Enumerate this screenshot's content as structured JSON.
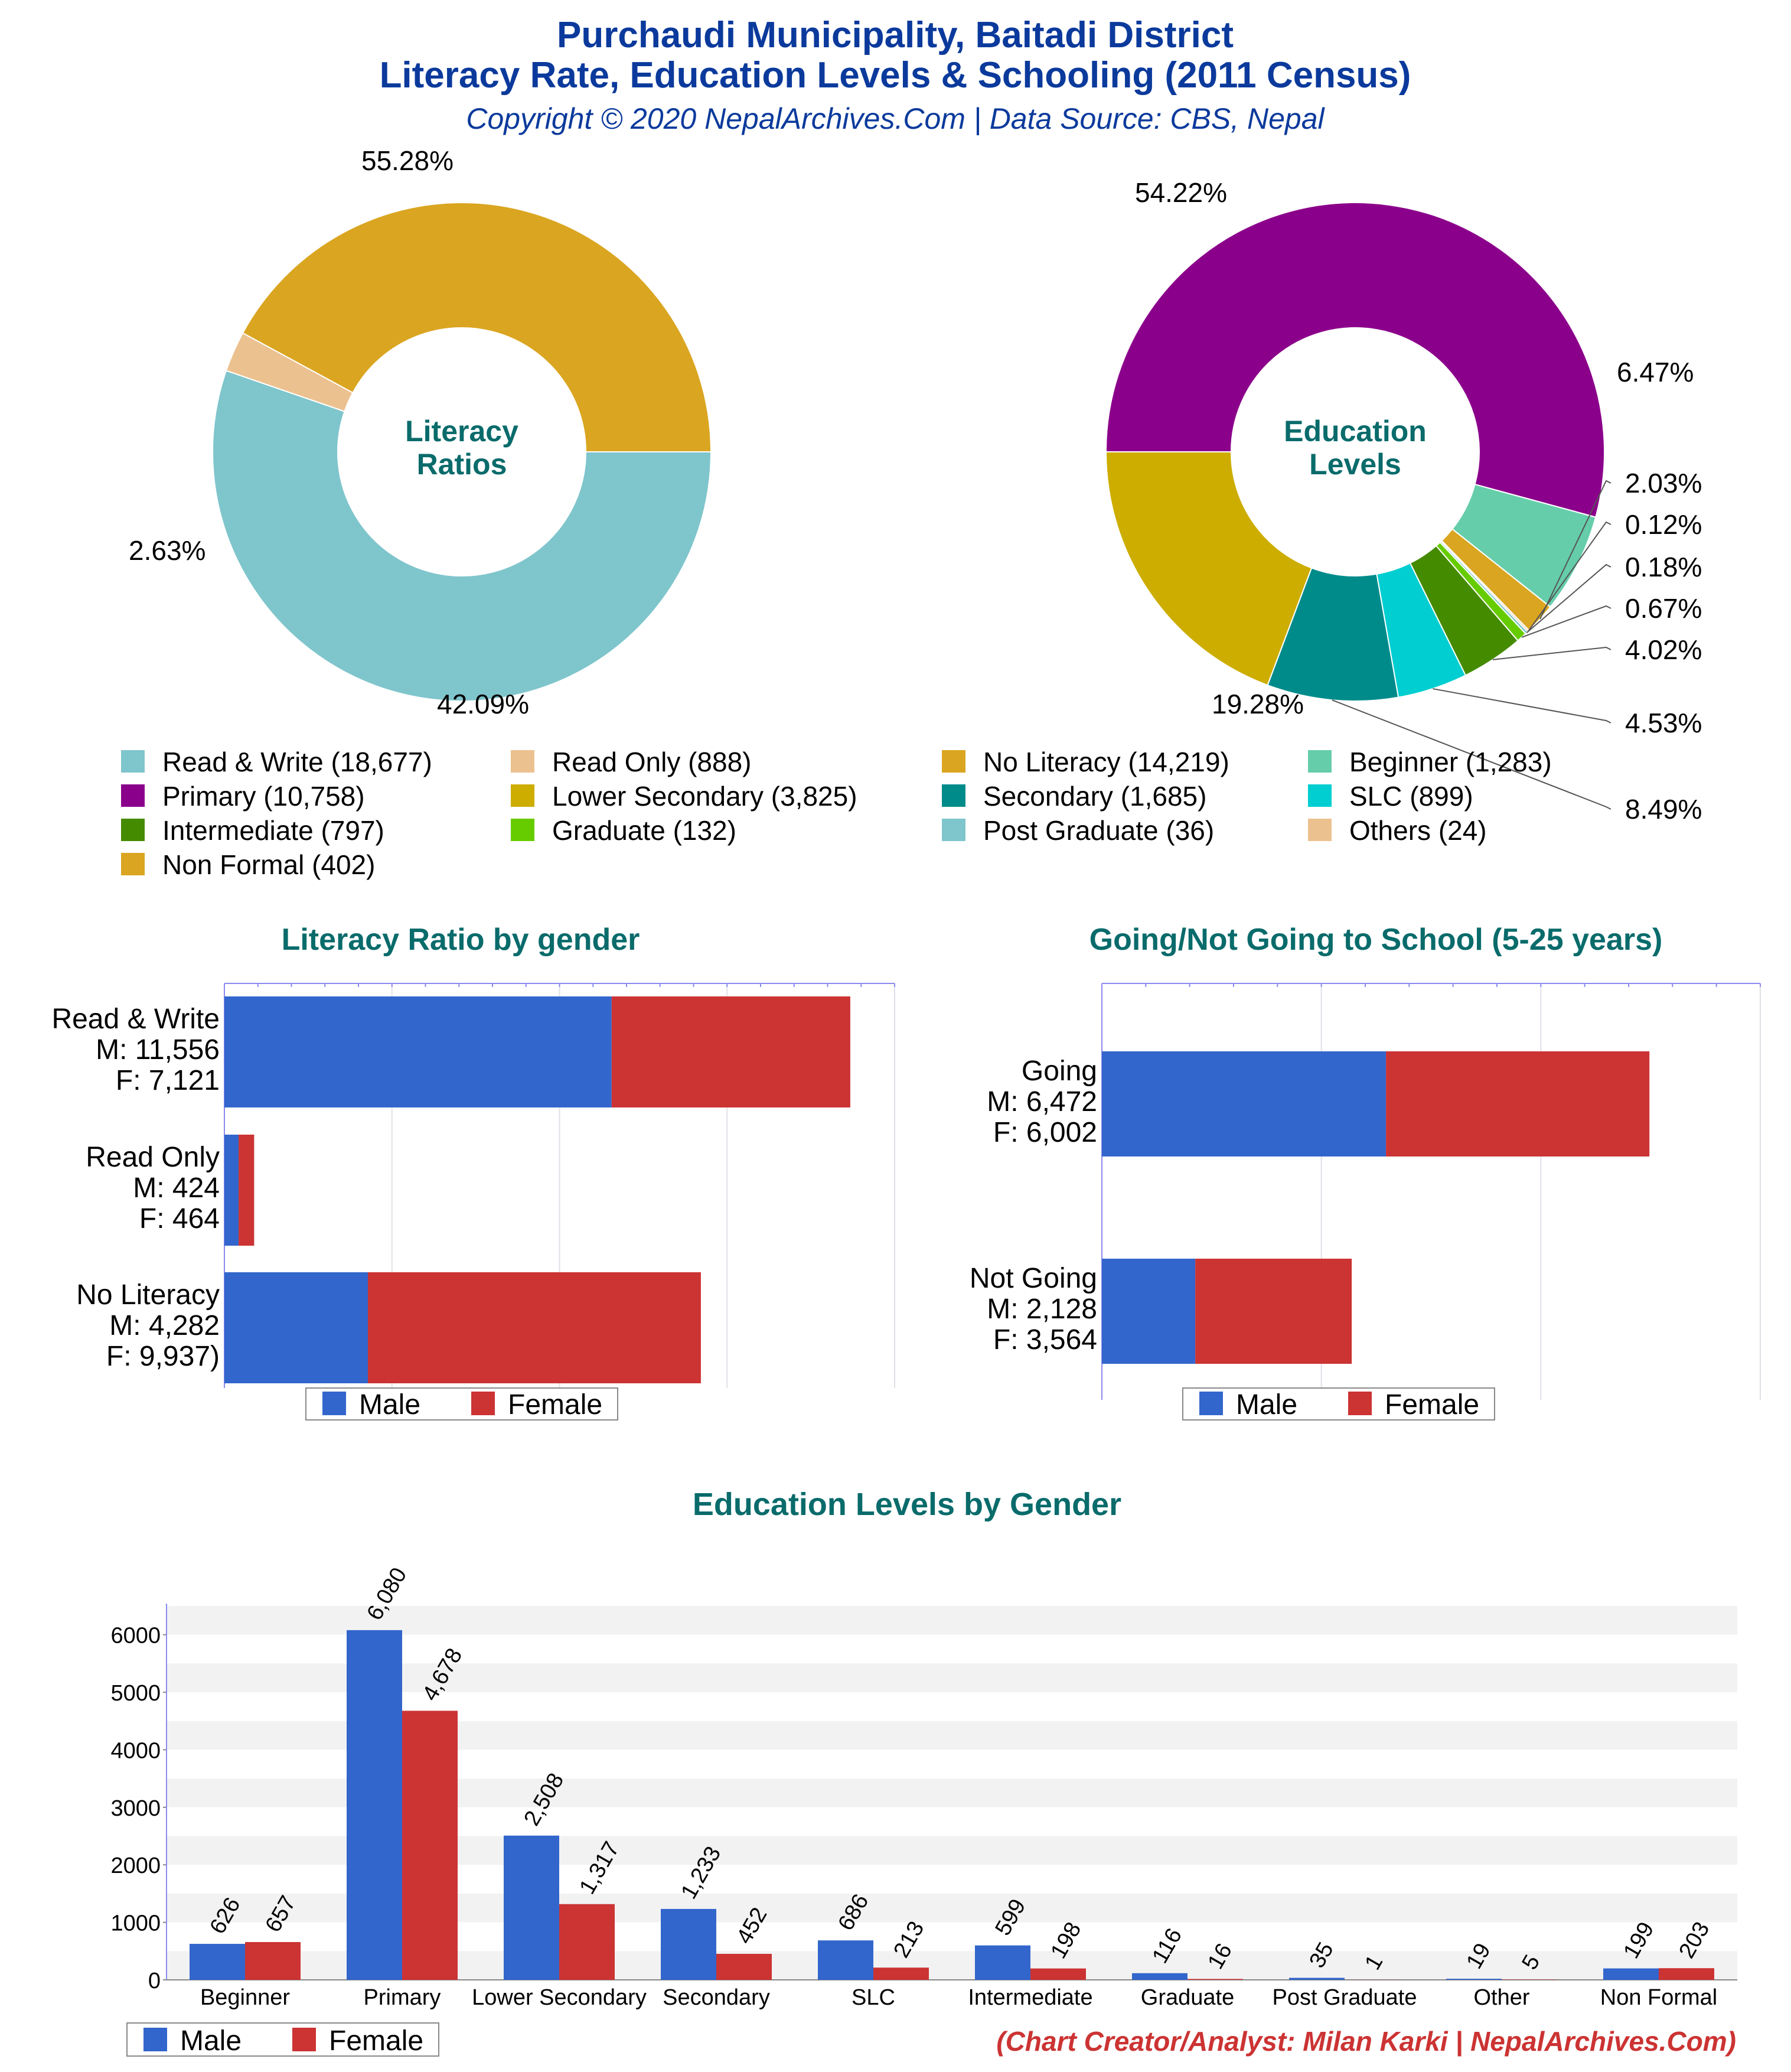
{
  "header": {
    "title_line1": "Purchaudi Municipality, Baitadi District",
    "title_line2": "Literacy Rate, Education Levels & Schooling (2011 Census)",
    "subtitle": "Copyright © 2020 NepalArchives.Com | Data Source: CBS, Nepal"
  },
  "colors": {
    "title": "#0b3a9c",
    "section_title": "#0a6b6b",
    "male": "#3366cc",
    "female": "#cc3333",
    "credit": "#cc3333"
  },
  "credit": "(Chart Creator/Analyst: Milan Karki | NepalArchives.Com)",
  "chart_data": [
    {
      "id": "literacy-donut",
      "type": "pie",
      "center_label": [
        "Literacy",
        "Ratios"
      ],
      "slices": [
        {
          "name": "Read & Write",
          "value": 18677,
          "pct": "55.28%",
          "color": "#7fc5cc"
        },
        {
          "name": "Read Only",
          "value": 888,
          "pct": "2.63%",
          "color": "#ecc190"
        },
        {
          "name": "No Literacy",
          "value": 14219,
          "pct": "42.09%",
          "color": "#daa520"
        }
      ]
    },
    {
      "id": "education-donut",
      "type": "pie",
      "center_label": [
        "Education",
        "Levels"
      ],
      "slices": [
        {
          "name": "Primary",
          "value": 10758,
          "pct": "54.22%",
          "color": "#8b008b"
        },
        {
          "name": "Beginner",
          "value": 1283,
          "pct": "6.47%",
          "color": "#66cdaa"
        },
        {
          "name": "Non Formal",
          "value": 402,
          "pct": "2.03%",
          "color": "#daa520"
        },
        {
          "name": "Others",
          "value": 24,
          "pct": "0.12%",
          "color": "#ecc190"
        },
        {
          "name": "Post Graduate",
          "value": 36,
          "pct": "0.18%",
          "color": "#7fc5cc"
        },
        {
          "name": "Graduate",
          "value": 132,
          "pct": "0.67%",
          "color": "#66cc00"
        },
        {
          "name": "Intermediate",
          "value": 797,
          "pct": "4.02%",
          "color": "#458b00"
        },
        {
          "name": "SLC",
          "value": 899,
          "pct": "4.53%",
          "color": "#00ced1"
        },
        {
          "name": "Secondary",
          "value": 1685,
          "pct": "8.49%",
          "color": "#008b8b"
        },
        {
          "name": "Lower Secondary",
          "value": 3825,
          "pct": "19.28%",
          "color": "#cdad00"
        }
      ]
    },
    {
      "id": "literacy-gender",
      "type": "bar",
      "orientation": "horizontal-stacked",
      "title": "Literacy Ratio by gender",
      "categories": [
        {
          "name": "Read & Write",
          "labels": [
            "Read & Write",
            "M: 11,556",
            "F: 7,121"
          ]
        },
        {
          "name": "Read Only",
          "labels": [
            "Read Only",
            "M: 424",
            "F: 464"
          ]
        },
        {
          "name": "No Literacy",
          "labels": [
            "No Literacy",
            "M: 4,282",
            "F: 9,937)"
          ]
        }
      ],
      "series": [
        {
          "name": "Male",
          "values": [
            11556,
            424,
            4282
          ]
        },
        {
          "name": "Female",
          "values": [
            7121,
            464,
            9937
          ]
        }
      ],
      "xlim": [
        0,
        20000
      ],
      "legend": [
        "Male",
        "Female"
      ]
    },
    {
      "id": "school-gender",
      "type": "bar",
      "orientation": "horizontal-stacked",
      "title": "Going/Not Going to School (5-25 years)",
      "categories": [
        {
          "name": "Going",
          "labels": [
            "Going",
            "M: 6,472",
            "F: 6,002"
          ]
        },
        {
          "name": "Not Going",
          "labels": [
            "Not Going",
            "M: 2,128",
            "F: 3,564"
          ]
        }
      ],
      "series": [
        {
          "name": "Male",
          "values": [
            6472,
            2128
          ]
        },
        {
          "name": "Female",
          "values": [
            6002,
            3564
          ]
        }
      ],
      "xlim": [
        0,
        15000
      ],
      "legend": [
        "Male",
        "Female"
      ]
    },
    {
      "id": "education-gender",
      "type": "bar",
      "orientation": "vertical-grouped",
      "title": "Education Levels by Gender",
      "categories": [
        "Beginner",
        "Primary",
        "Lower Secondary",
        "Secondary",
        "SLC",
        "Intermediate",
        "Graduate",
        "Post Graduate",
        "Other",
        "Non Formal"
      ],
      "series": [
        {
          "name": "Male",
          "values": [
            626,
            6080,
            2508,
            1233,
            686,
            599,
            116,
            35,
            19,
            199
          ],
          "labels": [
            "626",
            "6,080",
            "2,508",
            "1,233",
            "686",
            "599",
            "116",
            "35",
            "19",
            "199"
          ]
        },
        {
          "name": "Female",
          "values": [
            657,
            4678,
            1317,
            452,
            213,
            198,
            16,
            1,
            5,
            203
          ],
          "labels": [
            "657",
            "4,678",
            "1,317",
            "452",
            "213",
            "198",
            "16",
            "1",
            "5",
            "203"
          ]
        }
      ],
      "yticks": [
        "0",
        "1000",
        "2000",
        "3000",
        "4000",
        "5000",
        "6000"
      ],
      "ylim": [
        0,
        6500
      ],
      "legend": [
        "Male",
        "Female"
      ]
    }
  ]
}
